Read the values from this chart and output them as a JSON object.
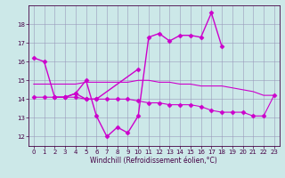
{
  "xlabel": "Windchill (Refroidissement éolien,°C)",
  "xlim": [
    -0.5,
    23.5
  ],
  "ylim": [
    11.5,
    19.0
  ],
  "yticks": [
    12,
    13,
    14,
    15,
    16,
    17,
    18
  ],
  "xticks": [
    0,
    1,
    2,
    3,
    4,
    5,
    6,
    7,
    8,
    9,
    10,
    11,
    12,
    13,
    14,
    15,
    16,
    17,
    18,
    19,
    20,
    21,
    22,
    23
  ],
  "bg_color": "#cce8e8",
  "line_color": "#cc00cc",
  "grid_color": "#9999bb",
  "series": [
    {
      "x": [
        0,
        1,
        2,
        3,
        4,
        5,
        6,
        7,
        8,
        9,
        10,
        11,
        12,
        13,
        14,
        15,
        16,
        17,
        18
      ],
      "y": [
        16.2,
        16.0,
        14.1,
        14.1,
        14.3,
        15.0,
        13.1,
        12.0,
        12.5,
        12.2,
        13.1,
        17.3,
        17.5,
        17.1,
        17.4,
        17.4,
        17.3,
        18.6,
        16.8
      ],
      "marker": "D",
      "markersize": 2.5,
      "linewidth": 1.0
    },
    {
      "x": [
        2,
        3,
        4,
        5,
        6,
        10
      ],
      "y": [
        14.1,
        14.1,
        14.3,
        14.0,
        14.0,
        15.6
      ],
      "marker": "D",
      "markersize": 2.5,
      "linewidth": 1.0
    },
    {
      "x": [
        0,
        1,
        2,
        3,
        4,
        5,
        6,
        7,
        8,
        9,
        10,
        11,
        12,
        13,
        14,
        15,
        16,
        17,
        18,
        19,
        20,
        21,
        22,
        23
      ],
      "y": [
        14.8,
        14.8,
        14.8,
        14.8,
        14.8,
        14.9,
        14.9,
        14.9,
        14.9,
        14.9,
        15.0,
        15.0,
        14.9,
        14.9,
        14.8,
        14.8,
        14.7,
        14.7,
        14.7,
        14.6,
        14.5,
        14.4,
        14.2,
        14.2
      ],
      "marker": null,
      "markersize": 0,
      "linewidth": 0.8
    },
    {
      "x": [
        0,
        1,
        2,
        3,
        4,
        5,
        6,
        7,
        8,
        9,
        10,
        11,
        12,
        13,
        14,
        15,
        16,
        17,
        18,
        19,
        20,
        21,
        22,
        23
      ],
      "y": [
        14.1,
        14.1,
        14.1,
        14.1,
        14.1,
        14.0,
        14.0,
        14.0,
        14.0,
        14.0,
        13.9,
        13.8,
        13.8,
        13.7,
        13.7,
        13.7,
        13.6,
        13.4,
        13.3,
        13.3,
        13.3,
        13.1,
        13.1,
        14.2
      ],
      "marker": "D",
      "markersize": 2.5,
      "linewidth": 0.8
    }
  ]
}
